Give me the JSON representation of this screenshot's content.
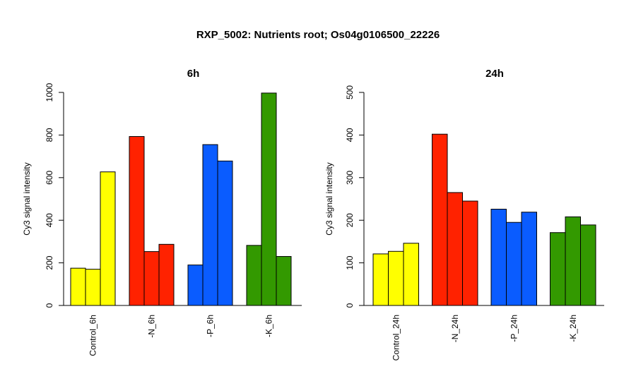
{
  "title": "RXP_5002: Nutrients root; Os04g0106500_22226",
  "colors": {
    "Control": "#ffff00",
    "N": "#ff2200",
    "P": "#0a5cff",
    "K": "#339900"
  },
  "chart_data": [
    {
      "type": "bar",
      "title": "6h",
      "ylabel": "Cy3 signal intensity",
      "ylim": [
        0,
        1000
      ],
      "yticks": [
        0,
        200,
        400,
        600,
        800,
        1000
      ],
      "groups": [
        {
          "label": "Control_6h",
          "color_key": "Control",
          "values": [
            175,
            170,
            627
          ]
        },
        {
          "label": "-N_6h",
          "color_key": "N",
          "values": [
            793,
            253,
            287
          ]
        },
        {
          "label": "-P_6h",
          "color_key": "P",
          "values": [
            190,
            755,
            678
          ]
        },
        {
          "label": "-K_6h",
          "color_key": "K",
          "values": [
            282,
            997,
            230
          ]
        }
      ]
    },
    {
      "type": "bar",
      "title": "24h",
      "ylabel": "Cy3 signal intensity",
      "ylim": [
        0,
        500
      ],
      "yticks": [
        0,
        100,
        200,
        300,
        400,
        500
      ],
      "groups": [
        {
          "label": "Control_24h",
          "color_key": "Control",
          "values": [
            121,
            127,
            146
          ]
        },
        {
          "label": "-N_24h",
          "color_key": "N",
          "values": [
            402,
            265,
            245
          ]
        },
        {
          "label": "-P_24h",
          "color_key": "P",
          "values": [
            226,
            195,
            219
          ]
        },
        {
          "label": "-K_24h",
          "color_key": "K",
          "values": [
            171,
            208,
            189
          ]
        }
      ]
    }
  ]
}
